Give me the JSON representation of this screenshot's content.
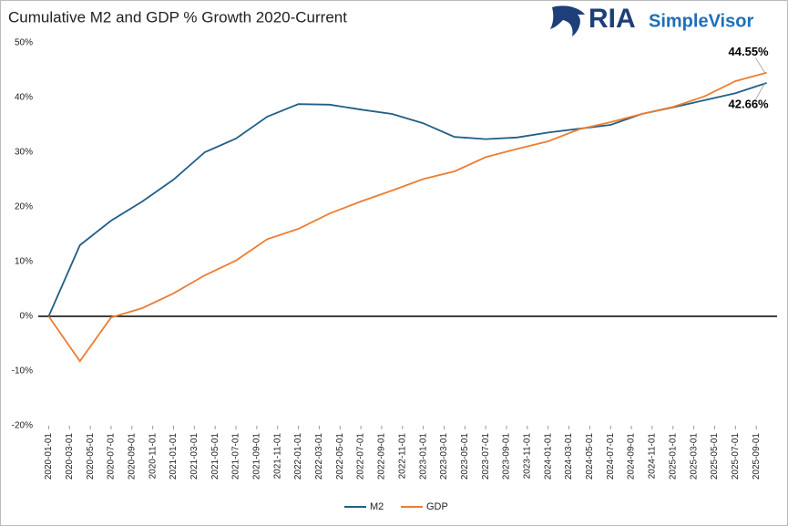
{
  "chart_data": {
    "type": "line",
    "title": "Cumulative M2 and GDP % Growth 2020-Current",
    "logo": {
      "brand": "RIA",
      "product": "SimpleVisor"
    },
    "x": [
      "2020-01-01",
      "2020-04-01",
      "2020-07-01",
      "2020-10-01",
      "2021-01-01",
      "2021-04-01",
      "2021-07-01",
      "2021-10-01",
      "2022-01-01",
      "2022-04-01",
      "2022-07-01",
      "2022-10-01",
      "2023-01-01",
      "2023-04-01",
      "2023-07-01",
      "2023-10-01",
      "2024-01-01",
      "2024-04-01",
      "2024-07-01",
      "2024-10-01",
      "2025-01-01",
      "2025-04-01",
      "2025-07-01",
      "2025-10-01"
    ],
    "series": [
      {
        "name": "M2",
        "color": "#215f86",
        "values": [
          0,
          13,
          17.5,
          21,
          25,
          30,
          32.5,
          36.5,
          38.8,
          38.7,
          37.8,
          37,
          35.3,
          32.8,
          32.4,
          32.7,
          33.6,
          34.3,
          35,
          37,
          38.2,
          39.5,
          40.8,
          42.66
        ],
        "value_labels": [
          null,
          null,
          null,
          null,
          null,
          null,
          null,
          null,
          null,
          null,
          null,
          null,
          null,
          null,
          null,
          null,
          null,
          null,
          null,
          null,
          null,
          null,
          null,
          "42.66%"
        ]
      },
      {
        "name": "GDP",
        "color": "#ed7d31",
        "values": [
          0,
          -8.2,
          -0.2,
          1.5,
          4.2,
          7.5,
          10.2,
          14.1,
          16,
          18.8,
          21,
          23,
          25.1,
          26.5,
          29.1,
          30.6,
          32,
          34.2,
          35.5,
          37,
          38.3,
          40.2,
          43,
          44.55
        ],
        "value_labels": [
          null,
          null,
          null,
          null,
          null,
          null,
          null,
          null,
          null,
          null,
          null,
          null,
          null,
          null,
          null,
          null,
          null,
          null,
          null,
          null,
          null,
          null,
          null,
          "44.55%"
        ]
      }
    ],
    "xlim": [
      "2019-12-01",
      "2025-11-01"
    ],
    "xticks": [
      "2020-01-01",
      "2020-03-01",
      "2020-05-01",
      "2020-07-01",
      "2020-09-01",
      "2020-11-01",
      "2021-01-01",
      "2021-03-01",
      "2021-05-01",
      "2021-07-01",
      "2021-09-01",
      "2021-11-01",
      "2022-01-01",
      "2022-03-01",
      "2022-05-01",
      "2022-07-01",
      "2022-09-01",
      "2022-11-01",
      "2023-01-01",
      "2023-03-01",
      "2023-05-01",
      "2023-07-01",
      "2023-09-01",
      "2023-11-01",
      "2024-01-01",
      "2024-03-01",
      "2024-05-01",
      "2024-07-01",
      "2024-09-01",
      "2024-11-01",
      "2025-01-01",
      "2025-03-01",
      "2025-05-01",
      "2025-07-01",
      "2025-09-01"
    ],
    "ylim": [
      -20,
      50
    ],
    "yticks": [
      {
        "value": -20,
        "label": "-20%"
      },
      {
        "value": -10,
        "label": "-10%"
      },
      {
        "value": 0,
        "label": "0%"
      },
      {
        "value": 10,
        "label": "10%"
      },
      {
        "value": 20,
        "label": "20%"
      },
      {
        "value": 30,
        "label": "30%"
      },
      {
        "value": 40,
        "label": "40%"
      },
      {
        "value": 50,
        "label": "50%"
      }
    ],
    "grid": false,
    "legend": "bottom"
  }
}
